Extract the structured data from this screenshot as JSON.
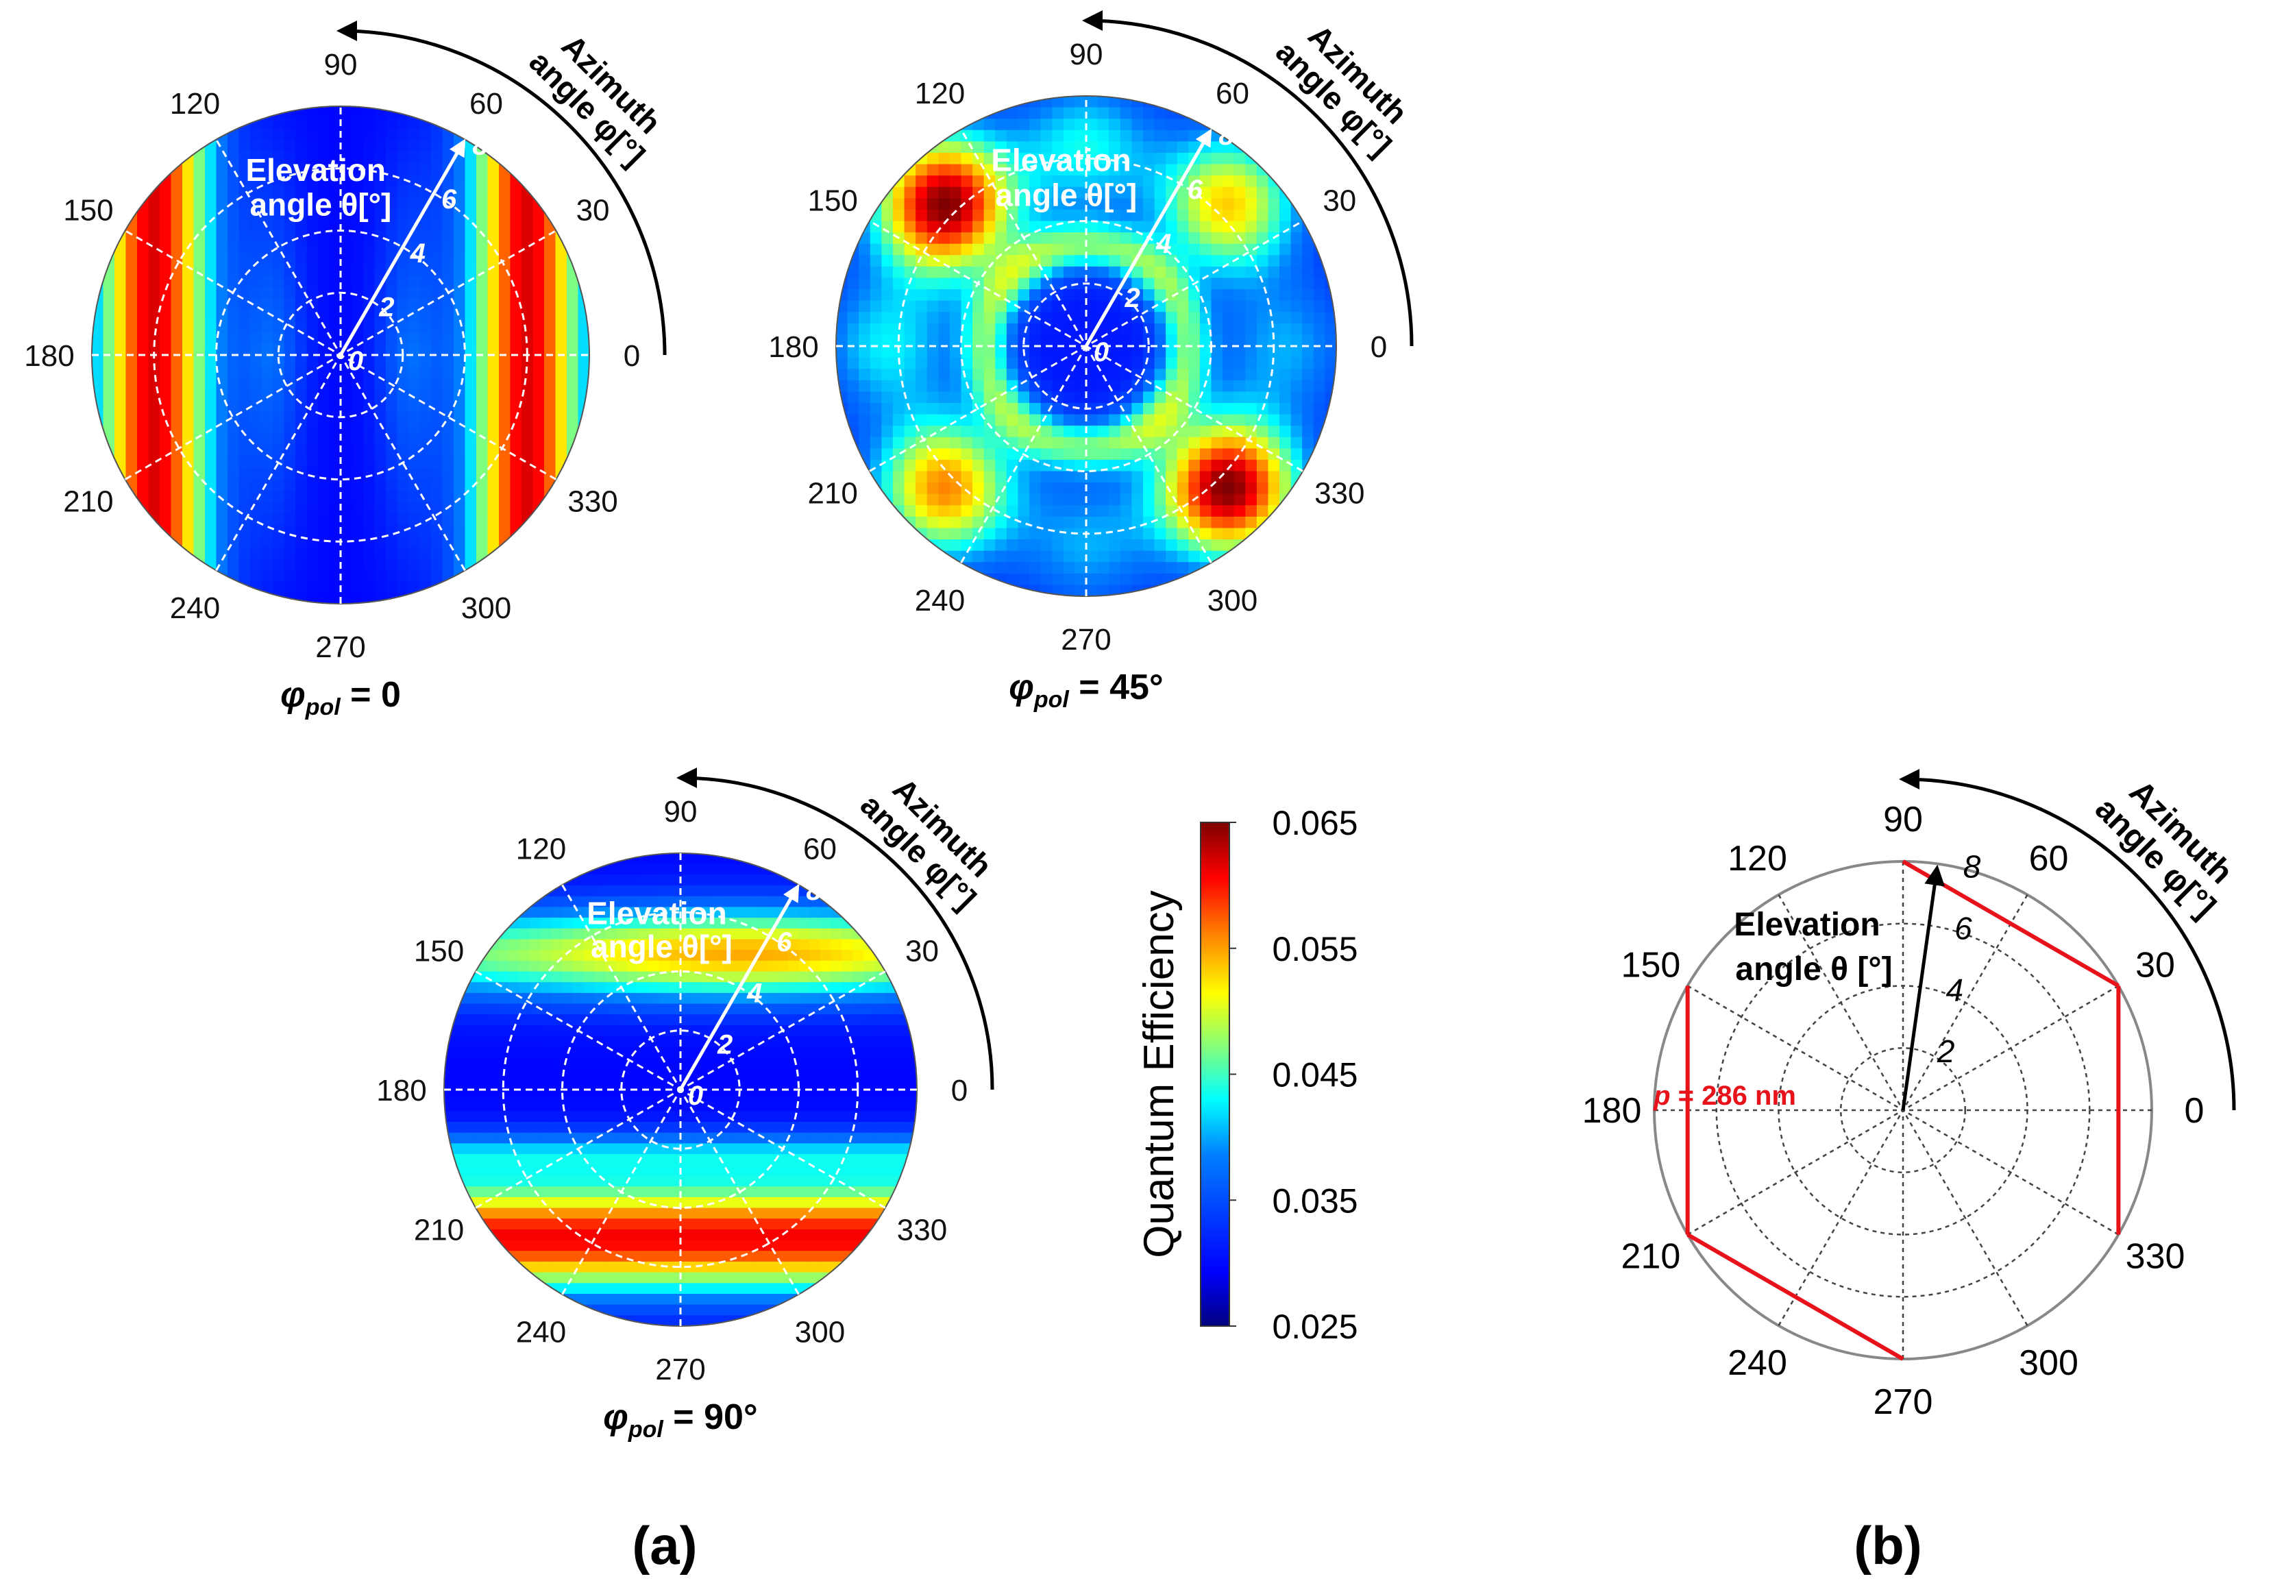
{
  "figure": {
    "panel_a_label": "(a)",
    "panel_b_label": "(b)"
  },
  "chart_data": [
    {
      "type": "heatmap",
      "coordinate_system": "polar",
      "caption_symbol": "φ",
      "caption_sub": "pol",
      "caption_value": " = 0",
      "radial_label_top": "Elevation",
      "radial_label_bottom": "angle θ[°]",
      "azimuth_label_top": "Azimuth",
      "azimuth_label_bottom": "angle φ[°]",
      "angular_ticks": [
        "0",
        "30",
        "60",
        "90",
        "120",
        "150",
        "180",
        "210",
        "240",
        "270",
        "300",
        "330"
      ],
      "radial_ticks": [
        "0",
        "2",
        "4",
        "6",
        "8"
      ],
      "r_range": [
        0,
        8
      ],
      "pattern": "vertical stripes: high QE bands at |x| ≈ 5–7°, low near x = 0 and edges",
      "qe_range": [
        0.025,
        0.065
      ]
    },
    {
      "type": "heatmap",
      "coordinate_system": "polar",
      "caption_symbol": "φ",
      "caption_sub": "pol",
      "caption_value": " = 45°",
      "radial_label_top": "Elevation",
      "radial_label_bottom": "angle θ[°]",
      "azimuth_label_top": "Azimuth",
      "azimuth_label_bottom": "angle φ[°]",
      "angular_ticks": [
        "0",
        "30",
        "60",
        "90",
        "120",
        "150",
        "180",
        "210",
        "240",
        "270",
        "300",
        "330"
      ],
      "radial_ticks": [
        "0",
        "2",
        "4",
        "6",
        "8"
      ],
      "r_range": [
        0,
        8
      ],
      "pattern": "six-fold lobes: high QE near 135° and 315°, medium near 45° and 225°",
      "qe_range": [
        0.025,
        0.065
      ]
    },
    {
      "type": "heatmap",
      "coordinate_system": "polar",
      "caption_symbol": "φ",
      "caption_sub": "pol",
      "caption_value": " = 90°",
      "radial_label_top": "Elevation",
      "radial_label_bottom": "angle θ[°]",
      "azimuth_label_top": "Azimuth",
      "azimuth_label_bottom": "angle φ[°]",
      "angular_ticks": [
        "0",
        "30",
        "60",
        "90",
        "120",
        "150",
        "180",
        "210",
        "240",
        "270",
        "300",
        "330"
      ],
      "radial_ticks": [
        "0",
        "2",
        "4",
        "6",
        "8"
      ],
      "r_range": [
        0,
        8
      ],
      "pattern": "horizontal stripes: high QE bands at y ≈ +4° and y ≈ -5°, low near y = 0",
      "qe_range": [
        0.025,
        0.065
      ]
    },
    {
      "type": "colorbar",
      "label": "Quantum Efficiency",
      "ticks": [
        "0.065",
        "0.055",
        "0.045",
        "0.035",
        "0.025"
      ],
      "range": [
        0.025,
        0.065
      ],
      "colors": [
        "#00007f",
        "#0000ff",
        "#007fff",
        "#00ffff",
        "#7fff7f",
        "#ffff00",
        "#ff7f00",
        "#ff0000",
        "#7f0000"
      ]
    },
    {
      "type": "polar_schematic",
      "angular_ticks": [
        "0",
        "30",
        "60",
        "90",
        "120",
        "150",
        "180",
        "210",
        "240",
        "270",
        "300",
        "330"
      ],
      "radial_ticks": [
        "2",
        "4",
        "6",
        "8"
      ],
      "r_range": [
        0,
        8
      ],
      "radial_label_top": "Elevation",
      "radial_label_bottom": "angle θ [°]",
      "azimuth_label_top": "Azimuth",
      "azimuth_label_bottom": "angle φ[°]",
      "lattice_label_symbol": "p",
      "lattice_label_value": " = 286 nm",
      "lattice_color": "#e8121b",
      "arrow_direction_deg": 82,
      "arrow_length": 8
    }
  ]
}
